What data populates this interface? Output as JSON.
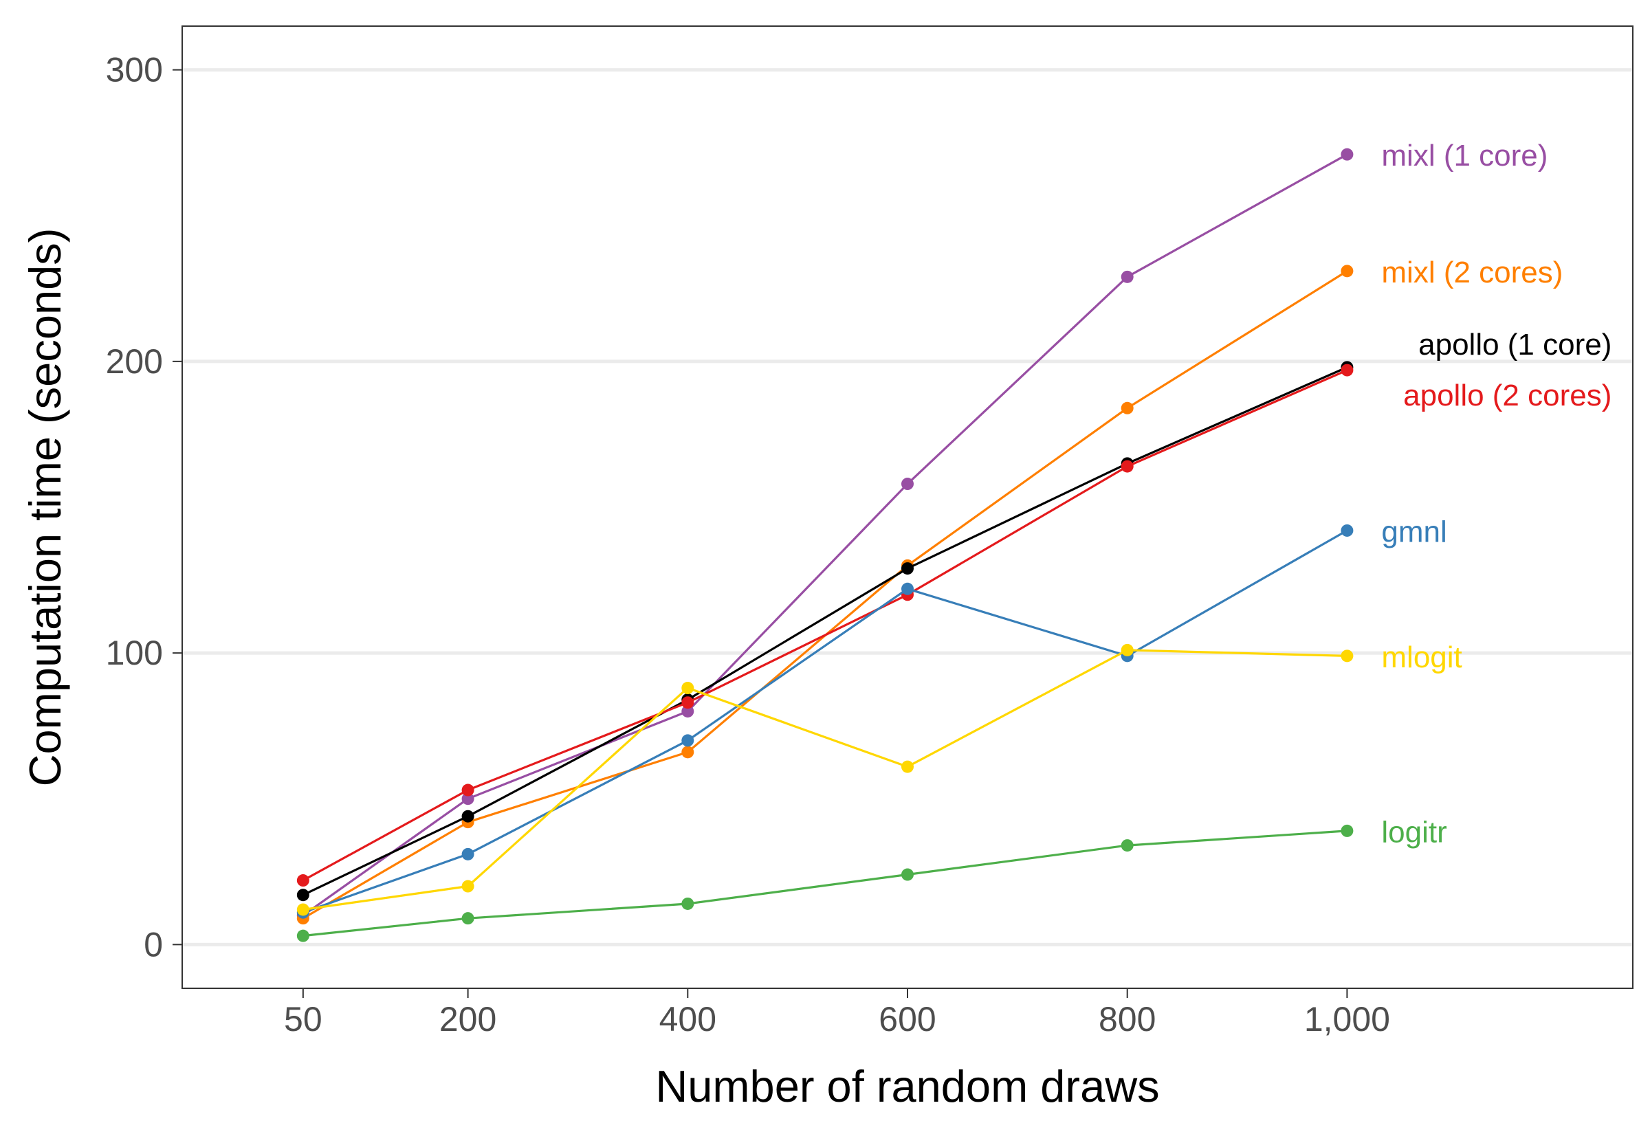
{
  "chart_data": {
    "type": "line",
    "xlabel": "Number of random draws",
    "ylabel": "Computation time (seconds)",
    "x": [
      50,
      200,
      400,
      600,
      800,
      1000
    ],
    "x_tick_labels": [
      "50",
      "200",
      "400",
      "600",
      "800",
      "1,000"
    ],
    "y_ticks": [
      0,
      100,
      200,
      300
    ],
    "y_tick_labels": [
      "0",
      "100",
      "200",
      "300"
    ],
    "xlim": [
      -60,
      1260
    ],
    "ylim": [
      -15,
      315
    ],
    "grid": "horizontal major lines",
    "legend": "direct labels at right end of each series",
    "series": [
      {
        "name": "mixl (1 core)",
        "color": "#984ea3",
        "values": [
          10,
          50,
          80,
          158,
          229,
          271
        ]
      },
      {
        "name": "mixl (2 cores)",
        "color": "#ff7f00",
        "values": [
          9,
          42,
          66,
          130,
          184,
          231
        ]
      },
      {
        "name": "apollo (1 core)",
        "color": "#000000",
        "values": [
          17,
          44,
          84,
          129,
          165,
          198
        ]
      },
      {
        "name": "apollo (2 cores)",
        "color": "#e41a1c",
        "values": [
          22,
          53,
          83,
          120,
          164,
          197
        ]
      },
      {
        "name": "gmnl",
        "color": "#377eb8",
        "values": [
          11,
          31,
          70,
          122,
          99,
          142
        ]
      },
      {
        "name": "mlogit",
        "color": "#ffd700",
        "values": [
          12,
          20,
          88,
          61,
          101,
          99
        ]
      },
      {
        "name": "logitr",
        "color": "#4daf4a",
        "values": [
          3,
          9,
          14,
          24,
          34,
          39
        ]
      }
    ]
  }
}
